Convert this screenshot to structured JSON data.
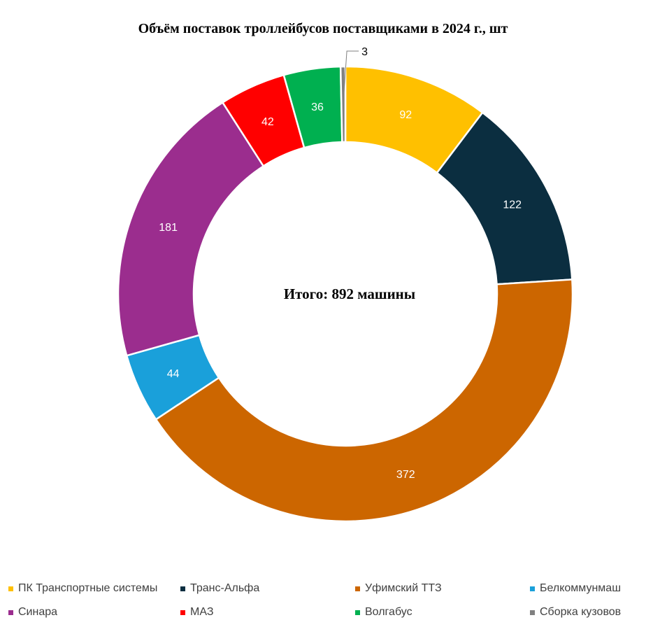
{
  "chart_data": {
    "type": "pie",
    "title": "Объём поставок троллейбусов поставщиками в 2024 г., шт",
    "center_label": "Итого: 892 машины",
    "legend_position": "bottom",
    "slices": [
      {
        "label": "ПК Транспортные системы",
        "value": 92,
        "color": "#FFC000"
      },
      {
        "label": "Транс-Альфа",
        "value": 122,
        "color": "#0B2E40"
      },
      {
        "label": "Уфимский ТТЗ",
        "value": 372,
        "color": "#CC6600"
      },
      {
        "label": "Белкоммунмаш",
        "value": 44,
        "color": "#1AA0DA"
      },
      {
        "label": "Синара",
        "value": 181,
        "color": "#9B2D8E"
      },
      {
        "label": "МАЗ",
        "value": 42,
        "color": "#FF0000"
      },
      {
        "label": "Волгабус",
        "value": 36,
        "color": "#00B050"
      },
      {
        "label": "Сборка кузовов",
        "value": 3,
        "color": "#808080"
      }
    ]
  }
}
